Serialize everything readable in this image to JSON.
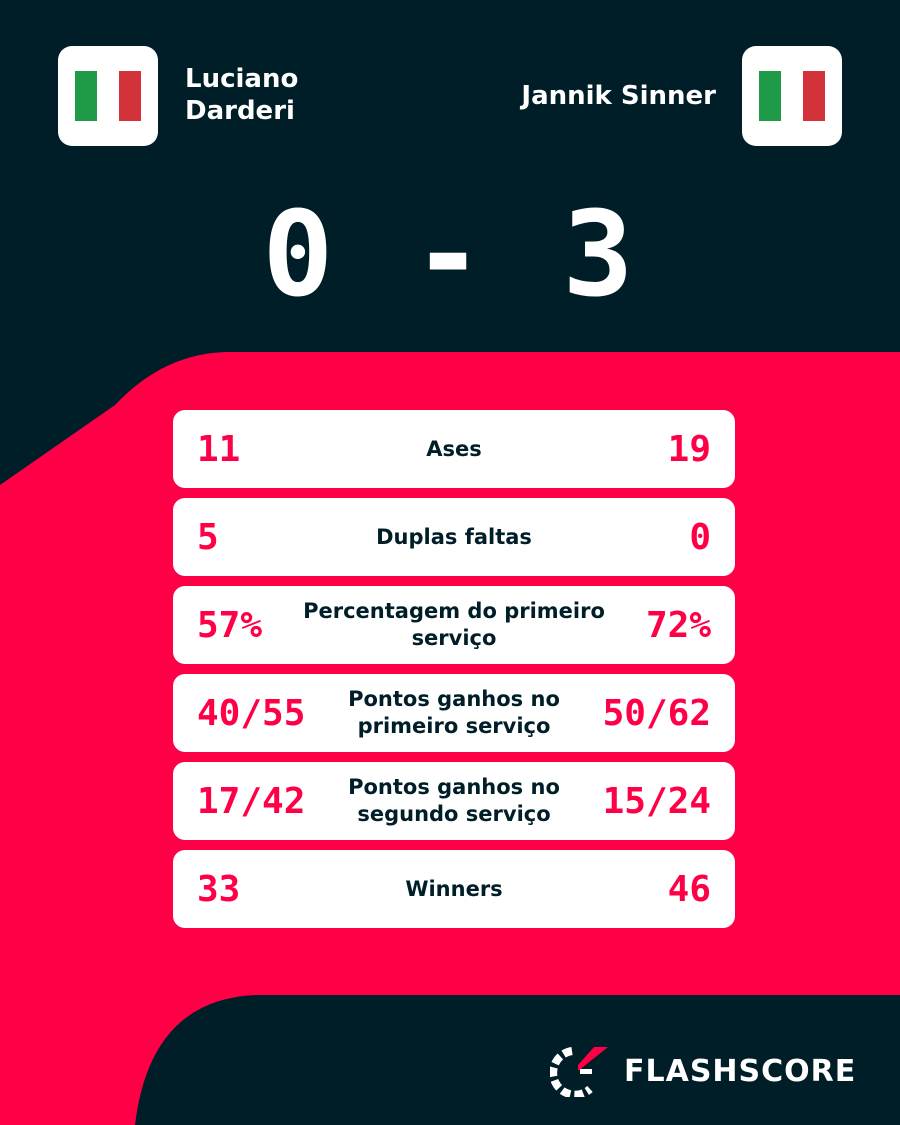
{
  "colors": {
    "background": "#001e28",
    "accent": "#ff0046",
    "card": "#ffffff"
  },
  "home": {
    "name_line1": "Luciano",
    "name_line2": "Darderi",
    "flag": "italy-flag"
  },
  "away": {
    "name": "Jannik Sinner",
    "flag": "italy-flag"
  },
  "score": "0 - 3",
  "stats": [
    {
      "home": "11",
      "label": "Ases",
      "away": "19"
    },
    {
      "home": "5",
      "label": "Duplas faltas",
      "away": "0"
    },
    {
      "home": "57%",
      "label": "Percentagem do primeiro serviço",
      "away": "72%"
    },
    {
      "home": "40/55",
      "label": "Pontos ganhos no primeiro serviço",
      "away": "50/62"
    },
    {
      "home": "17/42",
      "label": "Pontos ganhos no segundo serviço",
      "away": "15/24"
    },
    {
      "home": "33",
      "label": "Winners",
      "away": "46"
    }
  ],
  "brand": "FLASHSCORE"
}
